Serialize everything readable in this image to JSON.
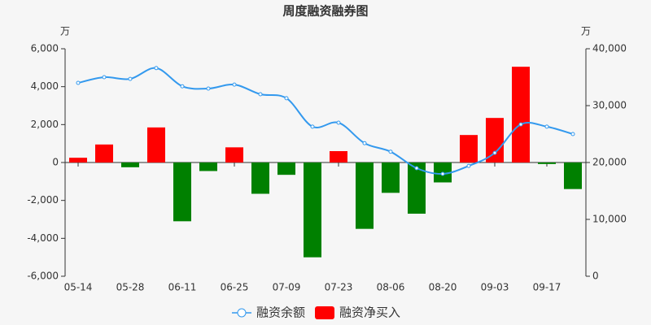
{
  "chart_data": {
    "type": "bar_line",
    "title": "周度融资融券图",
    "y_unit": "万",
    "y2_unit": "万",
    "categories": [
      "05-14",
      null,
      "05-28",
      null,
      "06-11",
      null,
      "06-25",
      null,
      "07-09",
      null,
      "07-23",
      null,
      "08-06",
      null,
      "08-20",
      null,
      "09-03",
      null,
      "09-17",
      null
    ],
    "series": [
      {
        "name": "融资余额",
        "type": "line",
        "axis": "y2",
        "color": "#3399ee",
        "values": [
          34000,
          35000,
          34700,
          36600,
          33400,
          33000,
          33700,
          32000,
          31300,
          26300,
          27000,
          23400,
          21900,
          19000,
          18000,
          19400,
          21700,
          26700,
          26300,
          25000
        ]
      },
      {
        "name": "融资净买入",
        "type": "bar",
        "axis": "y",
        "color": "#ff0000",
        "negative_color": "#008000",
        "values": [
          250,
          950,
          -250,
          1850,
          -3100,
          -450,
          800,
          -1650,
          -650,
          -5000,
          600,
          -3500,
          -1600,
          -2700,
          -1050,
          1450,
          2350,
          5050,
          -80,
          -1400
        ]
      }
    ],
    "ylim": [
      -6000,
      6000
    ],
    "yticks": [
      {
        "value": -6000,
        "label": "-6,000"
      },
      {
        "value": -4000,
        "label": "-4,000"
      },
      {
        "value": -2000,
        "label": "-2,000"
      },
      0,
      {
        "value": 2000,
        "label": "2,000"
      },
      {
        "value": 4000,
        "label": "4,000"
      },
      {
        "value": 6000,
        "label": "6,000"
      }
    ],
    "y2lim": [
      0,
      40000
    ],
    "y2ticks": [
      0,
      {
        "value": 10000,
        "label": "10,000"
      },
      {
        "value": 20000,
        "label": "20,000"
      },
      {
        "value": 30000,
        "label": "30,000"
      },
      {
        "value": 40000,
        "label": "40,000"
      }
    ],
    "grid": false
  }
}
